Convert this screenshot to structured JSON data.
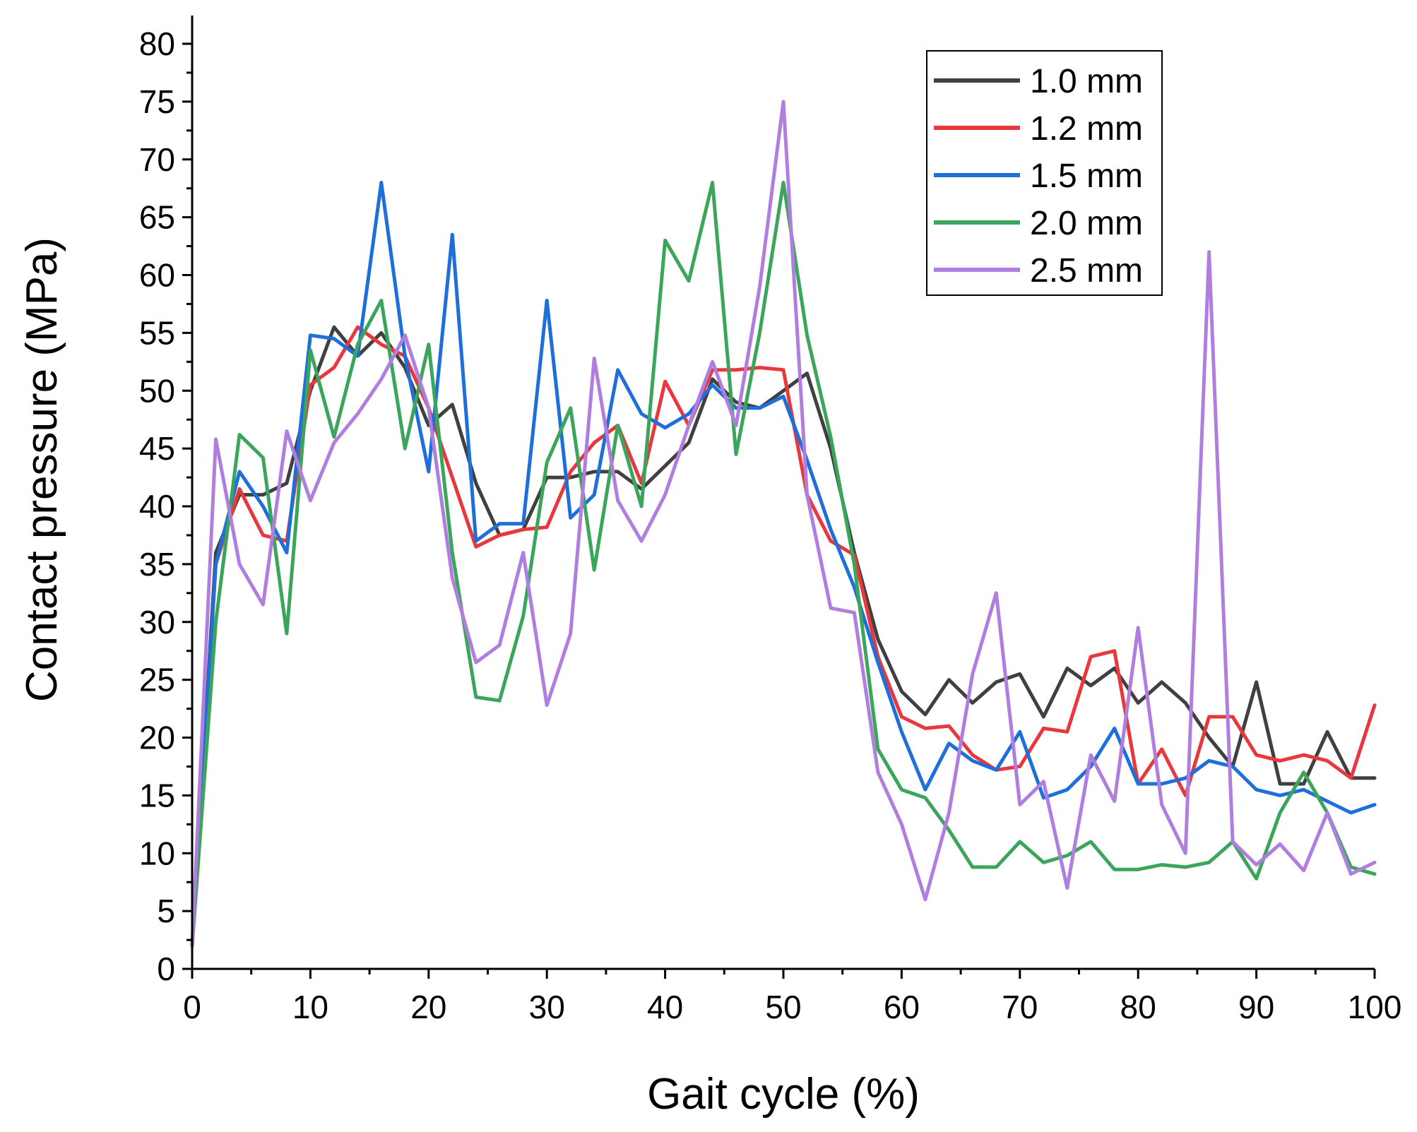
{
  "chart_data": {
    "type": "line",
    "xlabel": "Gait cycle (%)",
    "ylabel": "Contact pressure (MPa)",
    "xlim": [
      0,
      100
    ],
    "ylim": [
      0,
      83
    ],
    "x_ticks": [
      0,
      10,
      20,
      30,
      40,
      50,
      60,
      70,
      80,
      90,
      100
    ],
    "y_ticks": [
      0,
      5,
      10,
      15,
      20,
      25,
      30,
      35,
      40,
      45,
      50,
      55,
      60,
      65,
      70,
      75,
      80
    ],
    "grid": false,
    "legend_position": "top-right",
    "x": [
      0,
      2,
      4,
      6,
      8,
      10,
      12,
      14,
      16,
      18,
      20,
      22,
      24,
      26,
      28,
      30,
      32,
      34,
      36,
      38,
      40,
      42,
      44,
      46,
      48,
      50,
      52,
      54,
      56,
      58,
      60,
      62,
      64,
      66,
      68,
      70,
      72,
      74,
      76,
      78,
      80,
      82,
      84,
      86,
      88,
      90,
      92,
      94,
      96,
      98,
      100
    ],
    "series": [
      {
        "name": "1.0 mm",
        "color": "#404040",
        "values": [
          2,
          36,
          41,
          41,
          42,
          50,
          55.5,
          53,
          55,
          52,
          47,
          48.8,
          42,
          37.5,
          38,
          42.5,
          42.5,
          43,
          43,
          41.5,
          43.5,
          45.5,
          51,
          49,
          48.5,
          50,
          51.5,
          45,
          36,
          28.5,
          24,
          22,
          25,
          23,
          24.8,
          25.5,
          21.8,
          26,
          24.5,
          26,
          23,
          24.8,
          23,
          20,
          17.5,
          24.8,
          16,
          16,
          20.5,
          16.5,
          16.5
        ]
      },
      {
        "name": "1.2 mm",
        "color": "#e8383d",
        "values": [
          2,
          35,
          41.5,
          37.5,
          37,
          50.5,
          52,
          55.5,
          54,
          53,
          48.5,
          42.5,
          36.5,
          37.5,
          38,
          38.2,
          43,
          45.5,
          47,
          42,
          50.8,
          47,
          51.8,
          51.8,
          52,
          51.8,
          41,
          37,
          35.8,
          27,
          21.8,
          20.8,
          21,
          18.5,
          17.2,
          17.5,
          20.8,
          20.5,
          27,
          27.5,
          16,
          19,
          15,
          21.8,
          21.8,
          18.5,
          18,
          18.5,
          18,
          16.5,
          22.8
        ]
      },
      {
        "name": "1.5 mm",
        "color": "#1e6fd9",
        "values": [
          2,
          35,
          43,
          40,
          36,
          54.8,
          54.5,
          53,
          68,
          53,
          43,
          63.5,
          37,
          38.5,
          38.5,
          57.8,
          39,
          41,
          51.8,
          48,
          46.8,
          48,
          50.5,
          48.5,
          48.5,
          49.5,
          44,
          38,
          33,
          26.5,
          20.5,
          15.5,
          19.5,
          18,
          17.2,
          20.5,
          14.8,
          15.5,
          17.5,
          20.8,
          16,
          16,
          16.5,
          18,
          17.5,
          15.5,
          15,
          15.5,
          14.5,
          13.5,
          14.2
        ]
      },
      {
        "name": "2.0 mm",
        "color": "#3ba55c",
        "values": [
          2,
          30,
          46.2,
          44.2,
          29,
          53.5,
          46,
          54,
          57.8,
          45,
          54,
          36,
          23.5,
          23.2,
          30.5,
          43.8,
          48.5,
          34.5,
          47,
          40,
          63,
          59.5,
          68,
          44.5,
          55,
          68,
          54.8,
          46,
          35,
          19,
          15.5,
          14.8,
          12,
          8.8,
          8.8,
          11,
          9.2,
          9.8,
          11,
          8.6,
          8.6,
          9,
          8.8,
          9.2,
          11,
          7.8,
          13.5,
          17,
          13.5,
          8.8,
          8.2
        ]
      },
      {
        "name": "2.5 mm",
        "color": "#b07ede",
        "values": [
          2,
          45.8,
          35,
          31.5,
          46.5,
          40.5,
          45.5,
          48,
          51,
          54.8,
          48.5,
          33.8,
          26.5,
          28,
          36,
          22.8,
          29,
          52.8,
          40.5,
          37,
          41,
          47,
          52.5,
          47,
          59,
          75,
          41,
          31.2,
          30.8,
          17,
          12.5,
          6,
          13.5,
          25.5,
          32.5,
          14.2,
          16.2,
          7,
          18.5,
          14.5,
          29.5,
          14.2,
          10,
          62,
          11,
          9,
          10.8,
          8.5,
          13.5,
          8.2,
          9.2
        ]
      }
    ]
  }
}
